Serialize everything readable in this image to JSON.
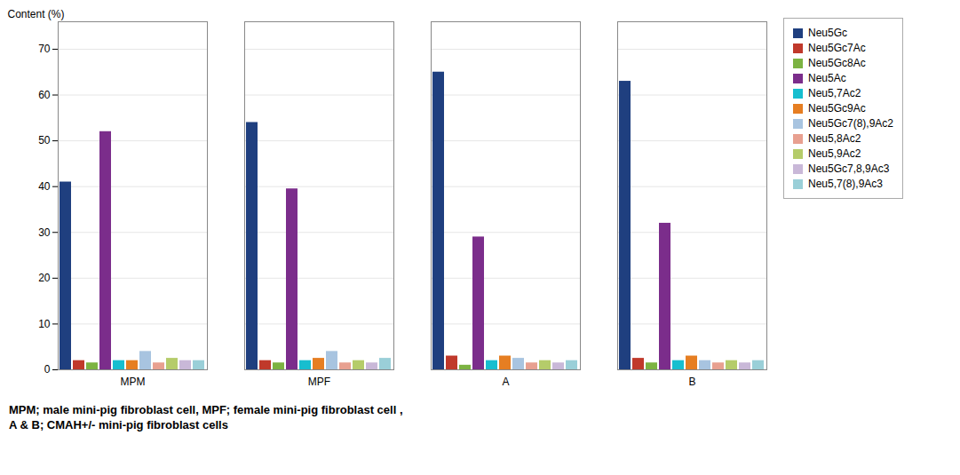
{
  "chart_data": {
    "type": "bar",
    "categories": [
      "MPM",
      "MPF",
      "A",
      "B"
    ],
    "series": [
      {
        "name": "Neu5Gc",
        "color": "#1F3F7F",
        "values": [
          41.0,
          54.0,
          65.0,
          63.0
        ]
      },
      {
        "name": "Neu5Gc7Ac",
        "color": "#C0392B",
        "values": [
          2.0,
          2.0,
          3.0,
          2.5
        ]
      },
      {
        "name": "Neu5Gc8Ac",
        "color": "#7CB342",
        "values": [
          1.5,
          1.5,
          1.0,
          1.5
        ]
      },
      {
        "name": "Neu5Ac",
        "color": "#7B2D8B",
        "values": [
          52.0,
          39.5,
          29.0,
          32.0
        ]
      },
      {
        "name": "Neu5,7Ac2",
        "color": "#17BECF",
        "values": [
          2.0,
          2.0,
          2.0,
          2.0
        ]
      },
      {
        "name": "Neu5Gc9Ac",
        "color": "#E67E22",
        "values": [
          2.0,
          2.5,
          3.0,
          3.0
        ]
      },
      {
        "name": "Neu5Gc7(8),9Ac2",
        "color": "#A8C4E0",
        "values": [
          4.0,
          4.0,
          2.5,
          2.0
        ]
      },
      {
        "name": "Neu5,8Ac2",
        "color": "#E8A090",
        "values": [
          1.5,
          1.5,
          1.5,
          1.5
        ]
      },
      {
        "name": "Neu5,9Ac2",
        "color": "#B5CC6A",
        "values": [
          2.5,
          2.0,
          2.0,
          2.0
        ]
      },
      {
        "name": "Neu5Gc7,8,9Ac3",
        "color": "#C9B8D8",
        "values": [
          2.0,
          1.5,
          1.5,
          1.5
        ]
      },
      {
        "name": "Neu5,7(8),9Ac3",
        "color": "#9ACFD8",
        "values": [
          2.0,
          2.5,
          2.0,
          2.0
        ]
      }
    ],
    "ylabel": "Content (%)",
    "ylim": [
      0,
      76
    ],
    "yticks": [
      0,
      10,
      20,
      30,
      40,
      50,
      60,
      70
    ],
    "grid": true,
    "legend": "right",
    "annotations": [
      "MPM; male mini-pig fibroblast cell, MPF; female mini-pig fibroblast cell ,",
      "A & B; CMAH+/- mini-pig fibroblast cells"
    ]
  }
}
